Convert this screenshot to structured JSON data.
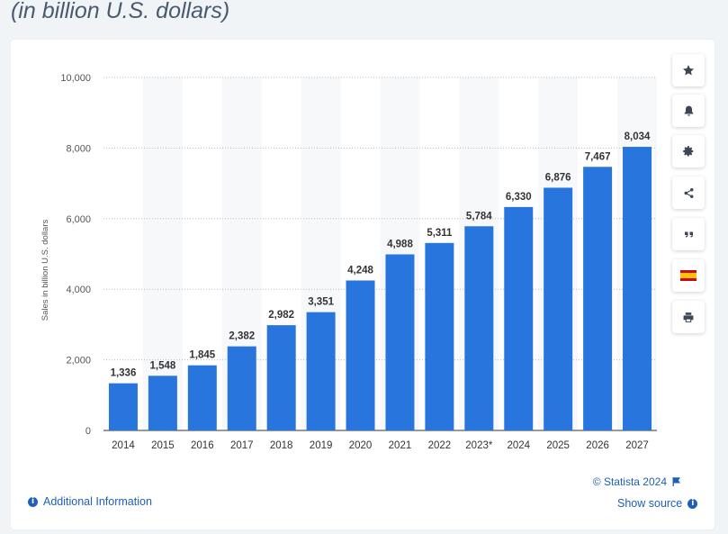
{
  "header": {
    "subtitle": "(in billion U.S. dollars)"
  },
  "toolbar": {
    "items": [
      {
        "icon": "star-icon"
      },
      {
        "icon": "bell-icon"
      },
      {
        "icon": "gear-icon"
      },
      {
        "icon": "share-icon"
      },
      {
        "icon": "quote-icon"
      },
      {
        "icon": "spain-flag-icon"
      },
      {
        "icon": "print-icon"
      }
    ]
  },
  "footer": {
    "additional_info": "Additional Information",
    "copyright": "© Statista 2024",
    "show_source": "Show source"
  },
  "colors": {
    "bar": "#2876dd",
    "link": "#1f5fb8",
    "axis_text": "#555555",
    "label_text": "#333333"
  },
  "chart_data": {
    "type": "bar",
    "categories": [
      "2014",
      "2015",
      "2016",
      "2017",
      "2018",
      "2019",
      "2020",
      "2021",
      "2022",
      "2023*",
      "2024",
      "2025",
      "2026",
      "2027"
    ],
    "values": [
      1336,
      1548,
      1845,
      2382,
      2982,
      3351,
      4248,
      4988,
      5311,
      5784,
      6330,
      6876,
      7467,
      8034
    ],
    "value_labels": [
      "1,336",
      "1,548",
      "1,845",
      "2,382",
      "2,982",
      "3,351",
      "4,248",
      "4,988",
      "5,311",
      "5,784",
      "6,330",
      "6,876",
      "7,467",
      "8,034"
    ],
    "ylabel": "Sales in billion U.S. dollars",
    "ylim": [
      0,
      10000
    ],
    "yticks": [
      0,
      2000,
      4000,
      6000,
      8000,
      10000
    ],
    "ytick_labels": [
      "0",
      "2,000",
      "4,000",
      "6,000",
      "8,000",
      "10,000"
    ],
    "grid": true
  }
}
